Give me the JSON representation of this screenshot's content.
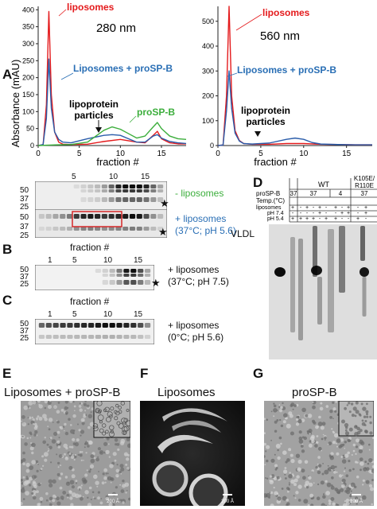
{
  "panel_labels": {
    "a": "A",
    "b": "B",
    "c": "C",
    "d": "D",
    "e": "E",
    "f": "F",
    "g": "G"
  },
  "colors": {
    "liposomes": "#e41a1c",
    "combo": "#2a5caa",
    "prosp": "#3cae3c",
    "blue_text": "#2a6fb5",
    "green_text": "#3cae3c",
    "red_box": "#d62728"
  },
  "chart_data": [
    {
      "type": "line",
      "title": "280 nm",
      "xlabel": "fraction #",
      "ylabel": "Absorbance (mAU)",
      "xticks": [
        0,
        5,
        10,
        15
      ],
      "yticks": [
        0,
        50,
        100,
        150,
        200,
        250,
        300,
        350,
        400
      ],
      "xlim": [
        0,
        18
      ],
      "ylim": [
        0,
        410
      ],
      "series": [
        {
          "name": "liposomes",
          "x": [
            0,
            0.6,
            1.0,
            1.3,
            1.6,
            2.0,
            2.5,
            3,
            4,
            6,
            8,
            10,
            12,
            13,
            14,
            14.5,
            15,
            16,
            17,
            18
          ],
          "values": [
            0,
            2,
            120,
            395,
            150,
            40,
            10,
            4,
            3,
            4,
            12,
            18,
            10,
            8,
            30,
            42,
            20,
            8,
            5,
            5
          ]
        },
        {
          "name": "Liposomes + proSP-B",
          "x": [
            0,
            0.6,
            1.0,
            1.3,
            1.6,
            2.0,
            2.5,
            3,
            4,
            6,
            8,
            9,
            10,
            11,
            12,
            13,
            14,
            14.5,
            15,
            16,
            17,
            18
          ],
          "values": [
            0,
            3,
            80,
            255,
            110,
            40,
            18,
            10,
            8,
            20,
            30,
            32,
            30,
            20,
            10,
            10,
            28,
            32,
            22,
            12,
            8,
            6
          ]
        },
        {
          "name": "proSP-B",
          "x": [
            0,
            2,
            4,
            6,
            8,
            9,
            10,
            11,
            12,
            13,
            14,
            14.5,
            15,
            16,
            17,
            18
          ],
          "values": [
            0,
            2,
            3,
            10,
            45,
            55,
            48,
            35,
            22,
            28,
            55,
            68,
            50,
            28,
            20,
            18
          ]
        }
      ],
      "annotations": [
        "lipoprotein particles"
      ]
    },
    {
      "type": "line",
      "title": "560 nm",
      "xlabel": "fraction #",
      "ylabel": "",
      "xticks": [
        0,
        5,
        10,
        15
      ],
      "yticks": [
        0,
        100,
        200,
        300,
        400,
        500
      ],
      "xlim": [
        0,
        18
      ],
      "ylim": [
        0,
        560
      ],
      "series": [
        {
          "name": "liposomes",
          "x": [
            0,
            0.6,
            1.0,
            1.3,
            1.6,
            2.0,
            2.5,
            3,
            4,
            6,
            8,
            10,
            12,
            14,
            16,
            18
          ],
          "values": [
            0,
            2,
            200,
            560,
            200,
            60,
            20,
            8,
            5,
            5,
            8,
            8,
            5,
            4,
            3,
            3
          ]
        },
        {
          "name": "Liposomes + proSP-B",
          "x": [
            0,
            0.6,
            1.0,
            1.3,
            1.6,
            2.0,
            2.5,
            3,
            4,
            6,
            8,
            9,
            10,
            11,
            12,
            14,
            16,
            18
          ],
          "values": [
            0,
            2,
            140,
            300,
            150,
            50,
            18,
            8,
            6,
            10,
            25,
            30,
            25,
            12,
            6,
            4,
            3,
            3
          ]
        }
      ],
      "annotations": [
        "lipoprotein particles"
      ]
    }
  ],
  "panel_a": {
    "wavelength_1": "280 nm",
    "wavelength_2": "560 nm",
    "ylabel": "Absorbance (mAU)",
    "xlabel": "fraction #",
    "legend_lipo": "liposomes",
    "legend_combo": "Liposomes + proSP-B",
    "legend_prosp": "proSP-B",
    "lipoprotein_line1": "lipoprotein",
    "lipoprotein_line2": "particles"
  },
  "blots_a": {
    "fraction_ticks": [
      "5",
      "10",
      "15"
    ],
    "mw": [
      "50",
      "37",
      "25"
    ],
    "label_minus": "- liposomes",
    "label_plus": "+ liposomes",
    "label_plus_cond": "(37°C; pH 5.6)",
    "star": "★"
  },
  "blot_b": {
    "title": "fraction #",
    "ticks": [
      "1",
      "5",
      "10",
      "15"
    ],
    "mw": [
      "50",
      "37",
      "25"
    ],
    "label1": "+ liposomes",
    "label2": "(37°C; pH 7.5)",
    "star": "★"
  },
  "blot_c": {
    "title": "fraction #",
    "ticks": [
      "1",
      "5",
      "10",
      "15"
    ],
    "mw": [
      "50",
      "37",
      "25"
    ],
    "label1": "+ liposomes",
    "label2": "(0°C; pH 5.6)"
  },
  "panel_d": {
    "prosp_label": "proSP-B",
    "temp_label": "Temp.(°C)",
    "liposomes_label": "liposomes",
    "ph74": "pH 7.4",
    "ph54": "pH 5.4",
    "wt": "WT",
    "mutant_line1": "K105E/",
    "mutant_line2": "R110E",
    "temps": [
      "37",
      "37",
      "4",
      "37"
    ],
    "vldl": "VLDL",
    "row_lipo": [
      "+",
      "-",
      "+",
      "-",
      "+",
      "-",
      "+",
      "-",
      "+",
      "-",
      "+"
    ],
    "row_ph74": [
      "-",
      "-",
      "-",
      "-",
      "+",
      "-",
      "-",
      "+",
      "+",
      "-",
      "+"
    ],
    "row_ph54": [
      "+",
      "+",
      "+",
      "+",
      "-",
      "+",
      "+",
      "-",
      "-",
      "+",
      "-"
    ]
  },
  "panel_e": {
    "title": "Liposomes + proSP-B",
    "scale": "200 Å"
  },
  "panel_f": {
    "title": "Liposomes",
    "scale": "200 Å"
  },
  "panel_g": {
    "title": "proSP-B",
    "scale": "200 Å"
  }
}
